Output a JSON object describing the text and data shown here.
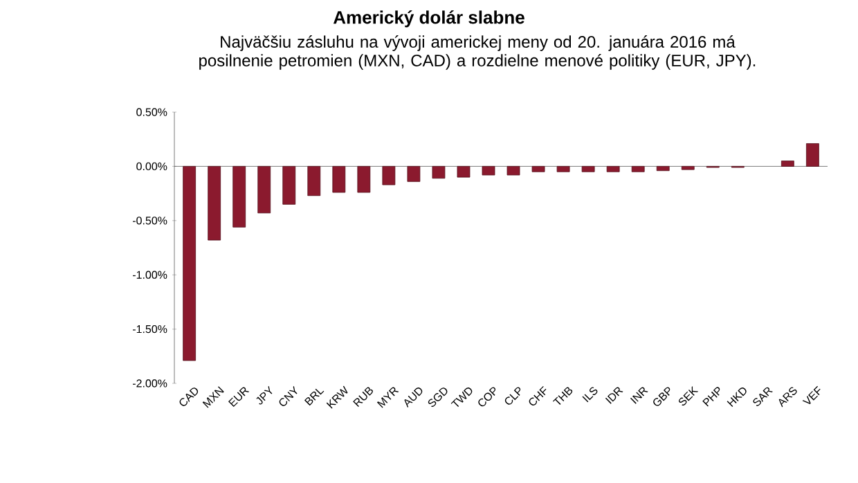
{
  "chart_data": {
    "type": "bar",
    "title": "Americký dolár slabne",
    "subtitle": "Najväčšiu zásluhu na vývoji americkej meny od 20. januára 2016 má posilnenie petromien  (MXN, CAD) a rozdielne menové politiky (EUR, JPY).",
    "categories": [
      "CAD",
      "MXN",
      "EUR",
      "JPY",
      "CNY",
      "BRL",
      "KRW",
      "RUB",
      "MYR",
      "AUD",
      "SGD",
      "TWD",
      "COP",
      "CLP",
      "CHF",
      "THB",
      "ILS",
      "IDR",
      "INR",
      "GBP",
      "SEK",
      "PHP",
      "HKD",
      "SAR",
      "ARS",
      "VEF"
    ],
    "values": [
      -1.79,
      -0.68,
      -0.56,
      -0.43,
      -0.35,
      -0.27,
      -0.24,
      -0.24,
      -0.17,
      -0.14,
      -0.11,
      -0.1,
      -0.08,
      -0.08,
      -0.05,
      -0.05,
      -0.05,
      -0.05,
      -0.05,
      -0.04,
      -0.03,
      -0.01,
      -0.01,
      null,
      0.05,
      0.21
    ],
    "color": "#8b1a2e",
    "ylim": [
      -2,
      0.5
    ],
    "yticks": [
      {
        "value": -2,
        "label": "-2.00%"
      },
      {
        "value": -1.5,
        "label": "-1.50%"
      },
      {
        "value": -1,
        "label": "-1.00%"
      },
      {
        "value": -0.5,
        "label": "-0.50%"
      },
      {
        "value": 0,
        "label": "0.00%"
      },
      {
        "value": 0.5,
        "label": "0.50%"
      }
    ]
  }
}
